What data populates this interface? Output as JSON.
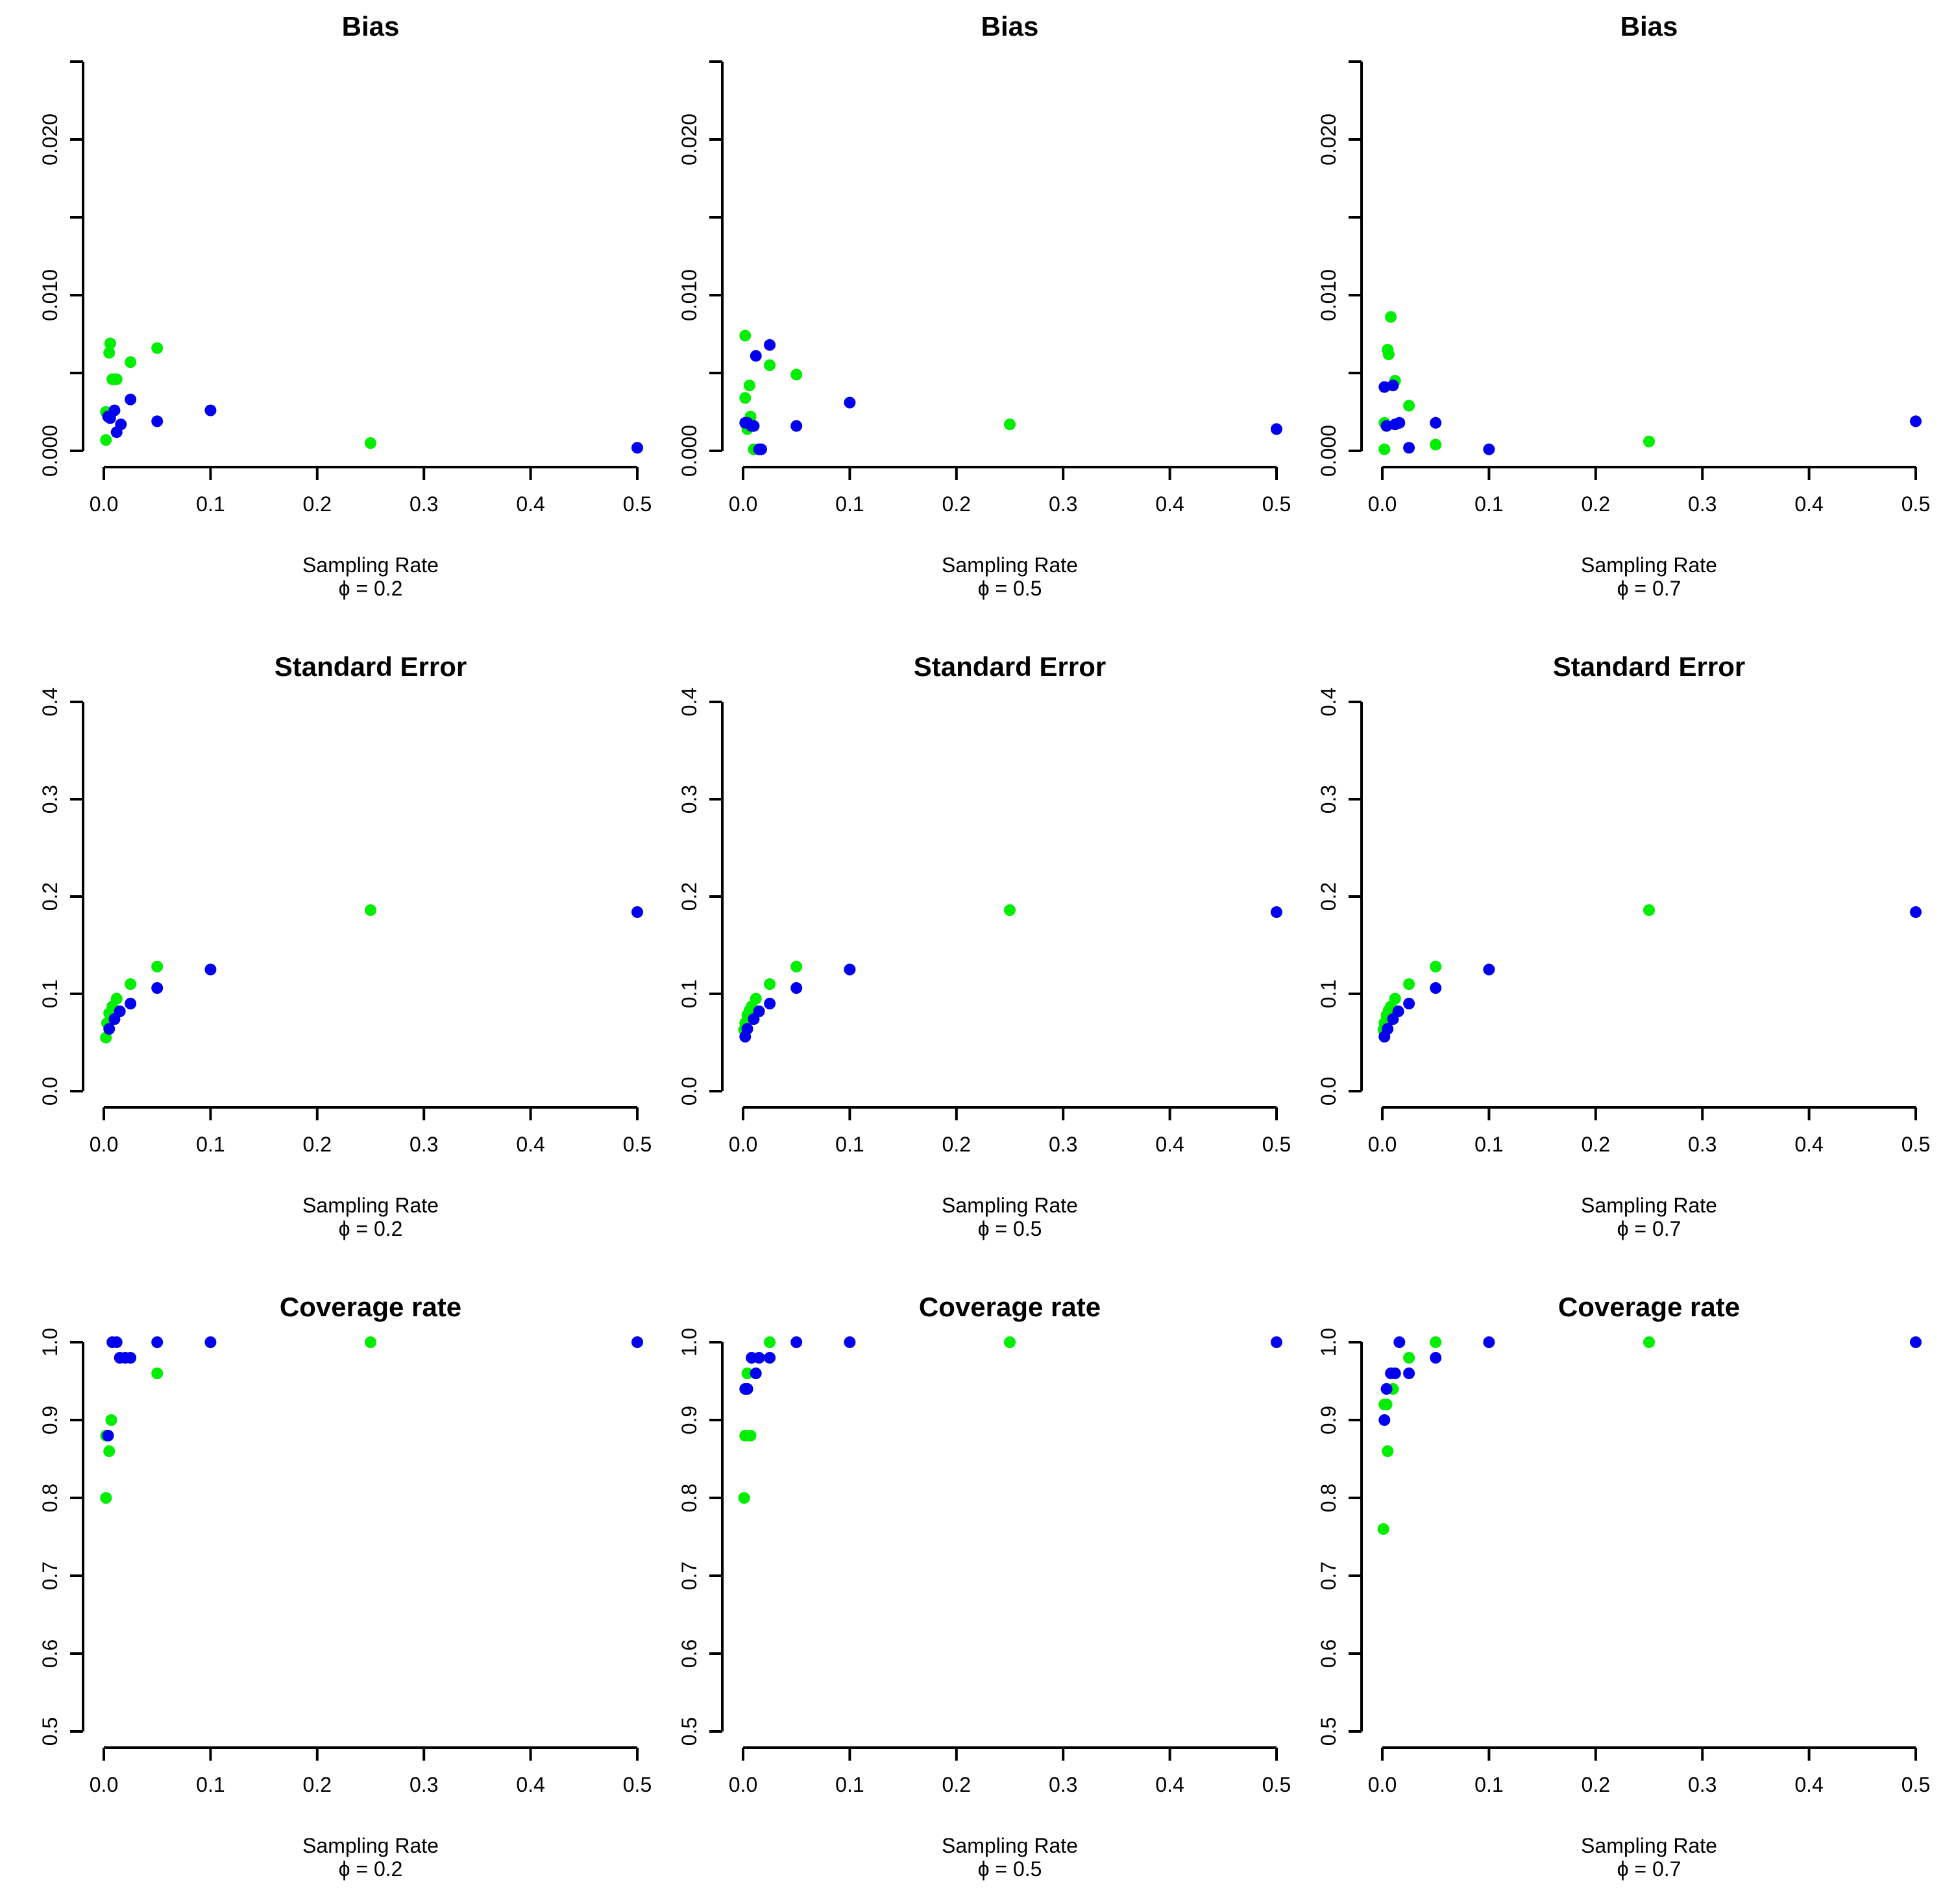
{
  "colors": {
    "green_series": "#00ee00",
    "blue_series": "#0000ee",
    "axis": "#000000"
  },
  "chart_data": [
    {
      "type": "scatter",
      "title": "Bias",
      "xlabel": "Sampling Rate",
      "phi_label": "ϕ = 0.2",
      "xlim": [
        0,
        0.5
      ],
      "ylim": [
        0,
        0.025
      ],
      "xticks": [
        0,
        0.1,
        0.2,
        0.3,
        0.4,
        0.5
      ],
      "xtick_labels": [
        "0.0",
        "0.1",
        "0.2",
        "0.3",
        "0.4",
        "0.5"
      ],
      "yticks": [
        0,
        0.005,
        0.01,
        0.015,
        0.02,
        0.025
      ],
      "ytick_labels": [
        "0.000",
        "",
        "0.010",
        "",
        "0.020",
        ""
      ],
      "series": [
        {
          "name": "green",
          "color": "#00ee00",
          "points": [
            [
              0.002,
              0.0025
            ],
            [
              0.002,
              0.0007
            ],
            [
              0.005,
              0.0063
            ],
            [
              0.006,
              0.0069
            ],
            [
              0.008,
              0.0046
            ],
            [
              0.01,
              0.0046
            ],
            [
              0.012,
              0.0046
            ],
            [
              0.025,
              0.0057
            ],
            [
              0.05,
              0.0066
            ],
            [
              0.25,
              0.0005
            ]
          ]
        },
        {
          "name": "blue",
          "color": "#0000ee",
          "points": [
            [
              0.004,
              0.0022
            ],
            [
              0.006,
              0.0021
            ],
            [
              0.01,
              0.0026
            ],
            [
              0.012,
              0.0012
            ],
            [
              0.016,
              0.0017
            ],
            [
              0.025,
              0.0033
            ],
            [
              0.05,
              0.0019
            ],
            [
              0.1,
              0.0026
            ],
            [
              0.5,
              0.0002
            ]
          ]
        }
      ]
    },
    {
      "type": "scatter",
      "title": "Bias",
      "xlabel": "Sampling Rate",
      "phi_label": "ϕ = 0.5",
      "xlim": [
        0,
        0.5
      ],
      "ylim": [
        0,
        0.025
      ],
      "xticks": [
        0,
        0.1,
        0.2,
        0.3,
        0.4,
        0.5
      ],
      "xtick_labels": [
        "0.0",
        "0.1",
        "0.2",
        "0.3",
        "0.4",
        "0.5"
      ],
      "yticks": [
        0,
        0.005,
        0.01,
        0.015,
        0.02,
        0.025
      ],
      "ytick_labels": [
        "0.000",
        "",
        "0.010",
        "",
        "0.020",
        ""
      ],
      "series": [
        {
          "name": "green",
          "color": "#00ee00",
          "points": [
            [
              0.002,
              0.0074
            ],
            [
              0.002,
              0.0034
            ],
            [
              0.004,
              0.0014
            ],
            [
              0.006,
              0.0042
            ],
            [
              0.007,
              0.0022
            ],
            [
              0.01,
              0.0001
            ],
            [
              0.025,
              0.0055
            ],
            [
              0.05,
              0.0049
            ],
            [
              0.25,
              0.0017
            ]
          ]
        },
        {
          "name": "blue",
          "color": "#0000ee",
          "points": [
            [
              0.002,
              0.0018
            ],
            [
              0.004,
              0.0018
            ],
            [
              0.008,
              0.0016
            ],
            [
              0.01,
              0.0016
            ],
            [
              0.012,
              0.0061
            ],
            [
              0.015,
              0.0001
            ],
            [
              0.017,
              0.0001
            ],
            [
              0.025,
              0.0068
            ],
            [
              0.05,
              0.0016
            ],
            [
              0.1,
              0.0031
            ],
            [
              0.5,
              0.0014
            ]
          ]
        }
      ]
    },
    {
      "type": "scatter",
      "title": "Bias",
      "xlabel": "Sampling Rate",
      "phi_label": "ϕ = 0.7",
      "xlim": [
        0,
        0.5
      ],
      "ylim": [
        0,
        0.025
      ],
      "xticks": [
        0,
        0.1,
        0.2,
        0.3,
        0.4,
        0.5
      ],
      "xtick_labels": [
        "0.0",
        "0.1",
        "0.2",
        "0.3",
        "0.4",
        "0.5"
      ],
      "yticks": [
        0,
        0.005,
        0.01,
        0.015,
        0.02,
        0.025
      ],
      "ytick_labels": [
        "0.000",
        "",
        "0.010",
        "",
        "0.020",
        ""
      ],
      "series": [
        {
          "name": "green",
          "color": "#00ee00",
          "points": [
            [
              0.002,
              0.0018
            ],
            [
              0.002,
              0.0001
            ],
            [
              0.005,
              0.0065
            ],
            [
              0.006,
              0.0062
            ],
            [
              0.008,
              0.0086
            ],
            [
              0.012,
              0.0045
            ],
            [
              0.025,
              0.0029
            ],
            [
              0.05,
              0.0004
            ],
            [
              0.25,
              0.0006
            ]
          ]
        },
        {
          "name": "blue",
          "color": "#0000ee",
          "points": [
            [
              0.002,
              0.0041
            ],
            [
              0.004,
              0.0016
            ],
            [
              0.01,
              0.0042
            ],
            [
              0.012,
              0.0017
            ],
            [
              0.016,
              0.0018
            ],
            [
              0.025,
              0.0002
            ],
            [
              0.05,
              0.0018
            ],
            [
              0.1,
              0.0001
            ],
            [
              0.5,
              0.0019
            ]
          ]
        }
      ]
    },
    {
      "type": "scatter",
      "title": "Standard Error",
      "xlabel": "Sampling Rate",
      "phi_label": "ϕ = 0.2",
      "xlim": [
        0,
        0.5
      ],
      "ylim": [
        0,
        0.4
      ],
      "xticks": [
        0,
        0.1,
        0.2,
        0.3,
        0.4,
        0.5
      ],
      "xtick_labels": [
        "0.0",
        "0.1",
        "0.2",
        "0.3",
        "0.4",
        "0.5"
      ],
      "yticks": [
        0,
        0.1,
        0.2,
        0.3,
        0.4
      ],
      "ytick_labels": [
        "0.0",
        "0.1",
        "0.2",
        "0.3",
        "0.4"
      ],
      "series": [
        {
          "name": "green",
          "color": "#00ee00",
          "points": [
            [
              0.002,
              0.055
            ],
            [
              0.003,
              0.07
            ],
            [
              0.005,
              0.08
            ],
            [
              0.008,
              0.087
            ],
            [
              0.012,
              0.095
            ],
            [
              0.025,
              0.11
            ],
            [
              0.05,
              0.128
            ],
            [
              0.25,
              0.186
            ]
          ]
        },
        {
          "name": "blue",
          "color": "#0000ee",
          "points": [
            [
              0.005,
              0.064
            ],
            [
              0.01,
              0.074
            ],
            [
              0.015,
              0.082
            ],
            [
              0.025,
              0.09
            ],
            [
              0.05,
              0.106
            ],
            [
              0.1,
              0.125
            ],
            [
              0.5,
              0.184
            ]
          ]
        }
      ]
    },
    {
      "type": "scatter",
      "title": "Standard Error",
      "xlabel": "Sampling Rate",
      "phi_label": "ϕ = 0.5",
      "xlim": [
        0,
        0.5
      ],
      "ylim": [
        0,
        0.4
      ],
      "xticks": [
        0,
        0.1,
        0.2,
        0.3,
        0.4,
        0.5
      ],
      "xtick_labels": [
        "0.0",
        "0.1",
        "0.2",
        "0.3",
        "0.4",
        "0.5"
      ],
      "yticks": [
        0,
        0.1,
        0.2,
        0.3,
        0.4
      ],
      "ytick_labels": [
        "0.0",
        "0.1",
        "0.2",
        "0.3",
        "0.4"
      ],
      "series": [
        {
          "name": "green",
          "color": "#00ee00",
          "points": [
            [
              0.001,
              0.063
            ],
            [
              0.002,
              0.07
            ],
            [
              0.004,
              0.078
            ],
            [
              0.006,
              0.083
            ],
            [
              0.008,
              0.087
            ],
            [
              0.012,
              0.095
            ],
            [
              0.025,
              0.11
            ],
            [
              0.05,
              0.128
            ],
            [
              0.25,
              0.186
            ]
          ]
        },
        {
          "name": "blue",
          "color": "#0000ee",
          "points": [
            [
              0.002,
              0.056
            ],
            [
              0.004,
              0.064
            ],
            [
              0.01,
              0.074
            ],
            [
              0.015,
              0.082
            ],
            [
              0.025,
              0.09
            ],
            [
              0.05,
              0.106
            ],
            [
              0.1,
              0.125
            ],
            [
              0.5,
              0.184
            ]
          ]
        }
      ]
    },
    {
      "type": "scatter",
      "title": "Standard Error",
      "xlabel": "Sampling Rate",
      "phi_label": "ϕ = 0.7",
      "xlim": [
        0,
        0.5
      ],
      "ylim": [
        0,
        0.4
      ],
      "xticks": [
        0,
        0.1,
        0.2,
        0.3,
        0.4,
        0.5
      ],
      "xtick_labels": [
        "0.0",
        "0.1",
        "0.2",
        "0.3",
        "0.4",
        "0.5"
      ],
      "yticks": [
        0,
        0.1,
        0.2,
        0.3,
        0.4
      ],
      "ytick_labels": [
        "0.0",
        "0.1",
        "0.2",
        "0.3",
        "0.4"
      ],
      "series": [
        {
          "name": "green",
          "color": "#00ee00",
          "points": [
            [
              0.001,
              0.063
            ],
            [
              0.002,
              0.07
            ],
            [
              0.004,
              0.078
            ],
            [
              0.006,
              0.083
            ],
            [
              0.008,
              0.087
            ],
            [
              0.012,
              0.095
            ],
            [
              0.025,
              0.11
            ],
            [
              0.05,
              0.128
            ],
            [
              0.25,
              0.186
            ]
          ]
        },
        {
          "name": "blue",
          "color": "#0000ee",
          "points": [
            [
              0.002,
              0.056
            ],
            [
              0.005,
              0.064
            ],
            [
              0.01,
              0.074
            ],
            [
              0.015,
              0.082
            ],
            [
              0.025,
              0.09
            ],
            [
              0.05,
              0.106
            ],
            [
              0.1,
              0.125
            ],
            [
              0.5,
              0.184
            ]
          ]
        }
      ]
    },
    {
      "type": "scatter",
      "title": "Coverage rate",
      "xlabel": "Sampling Rate",
      "phi_label": "ϕ = 0.2",
      "xlim": [
        0,
        0.5
      ],
      "ylim": [
        0.5,
        1.0
      ],
      "xticks": [
        0,
        0.1,
        0.2,
        0.3,
        0.4,
        0.5
      ],
      "xtick_labels": [
        "0.0",
        "0.1",
        "0.2",
        "0.3",
        "0.4",
        "0.5"
      ],
      "yticks": [
        0.5,
        0.6,
        0.7,
        0.8,
        0.9,
        1.0
      ],
      "ytick_labels": [
        "0.5",
        "0.6",
        "0.7",
        "0.8",
        "0.9",
        "1.0"
      ],
      "series": [
        {
          "name": "green",
          "color": "#00ee00",
          "points": [
            [
              0.002,
              0.8
            ],
            [
              0.002,
              0.88
            ],
            [
              0.005,
              0.86
            ],
            [
              0.007,
              0.9
            ],
            [
              0.05,
              0.96
            ],
            [
              0.25,
              1.0
            ]
          ]
        },
        {
          "name": "blue",
          "color": "#0000ee",
          "points": [
            [
              0.004,
              0.88
            ],
            [
              0.008,
              1.0
            ],
            [
              0.012,
              1.0
            ],
            [
              0.015,
              0.98
            ],
            [
              0.02,
              0.98
            ],
            [
              0.025,
              0.98
            ],
            [
              0.05,
              1.0
            ],
            [
              0.1,
              1.0
            ],
            [
              0.5,
              1.0
            ]
          ]
        }
      ]
    },
    {
      "type": "scatter",
      "title": "Coverage rate",
      "xlabel": "Sampling Rate",
      "phi_label": "ϕ = 0.5",
      "xlim": [
        0,
        0.5
      ],
      "ylim": [
        0.5,
        1.0
      ],
      "xticks": [
        0,
        0.1,
        0.2,
        0.3,
        0.4,
        0.5
      ],
      "xtick_labels": [
        "0.0",
        "0.1",
        "0.2",
        "0.3",
        "0.4",
        "0.5"
      ],
      "yticks": [
        0.5,
        0.6,
        0.7,
        0.8,
        0.9,
        1.0
      ],
      "ytick_labels": [
        "0.5",
        "0.6",
        "0.7",
        "0.8",
        "0.9",
        "1.0"
      ],
      "series": [
        {
          "name": "green",
          "color": "#00ee00",
          "points": [
            [
              0.001,
              0.8
            ],
            [
              0.002,
              0.88
            ],
            [
              0.004,
              0.96
            ],
            [
              0.007,
              0.88
            ],
            [
              0.025,
              1.0
            ],
            [
              0.25,
              1.0
            ]
          ]
        },
        {
          "name": "blue",
          "color": "#0000ee",
          "points": [
            [
              0.002,
              0.94
            ],
            [
              0.004,
              0.94
            ],
            [
              0.008,
              0.98
            ],
            [
              0.012,
              0.96
            ],
            [
              0.015,
              0.98
            ],
            [
              0.025,
              0.98
            ],
            [
              0.05,
              1.0
            ],
            [
              0.1,
              1.0
            ],
            [
              0.5,
              1.0
            ]
          ]
        }
      ]
    },
    {
      "type": "scatter",
      "title": "Coverage rate",
      "xlabel": "Sampling Rate",
      "phi_label": "ϕ = 0.7",
      "xlim": [
        0,
        0.5
      ],
      "ylim": [
        0.5,
        1.0
      ],
      "xticks": [
        0,
        0.1,
        0.2,
        0.3,
        0.4,
        0.5
      ],
      "xtick_labels": [
        "0.0",
        "0.1",
        "0.2",
        "0.3",
        "0.4",
        "0.5"
      ],
      "yticks": [
        0.5,
        0.6,
        0.7,
        0.8,
        0.9,
        1.0
      ],
      "ytick_labels": [
        "0.5",
        "0.6",
        "0.7",
        "0.8",
        "0.9",
        "1.0"
      ],
      "series": [
        {
          "name": "green",
          "color": "#00ee00",
          "points": [
            [
              0.001,
              0.76
            ],
            [
              0.002,
              0.92
            ],
            [
              0.004,
              0.92
            ],
            [
              0.005,
              0.86
            ],
            [
              0.01,
              0.94
            ],
            [
              0.025,
              0.98
            ],
            [
              0.05,
              1.0
            ],
            [
              0.25,
              1.0
            ]
          ]
        },
        {
          "name": "blue",
          "color": "#0000ee",
          "points": [
            [
              0.002,
              0.9
            ],
            [
              0.004,
              0.94
            ],
            [
              0.008,
              0.96
            ],
            [
              0.012,
              0.96
            ],
            [
              0.016,
              1.0
            ],
            [
              0.025,
              0.96
            ],
            [
              0.05,
              0.98
            ],
            [
              0.1,
              1.0
            ],
            [
              0.5,
              1.0
            ]
          ]
        }
      ]
    }
  ]
}
